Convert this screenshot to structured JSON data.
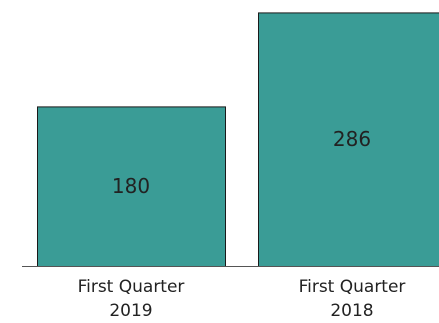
{
  "chart_data": {
    "type": "bar",
    "categories": [
      "First Quarter 2019",
      "First Quarter 2018"
    ],
    "category_lines": [
      [
        "First Quarter",
        "2019"
      ],
      [
        "First Quarter",
        "2018"
      ]
    ],
    "values": [
      180,
      286
    ],
    "data_labels": [
      "180",
      "286"
    ],
    "title": "",
    "xlabel": "",
    "ylabel": "",
    "ylim": [
      0,
      300
    ],
    "grid": false,
    "legend": "none",
    "colors": {
      "bar": "#3a9c96",
      "bar_border": "#1a1a1a",
      "text": "#222222",
      "axis": "#555555"
    }
  }
}
